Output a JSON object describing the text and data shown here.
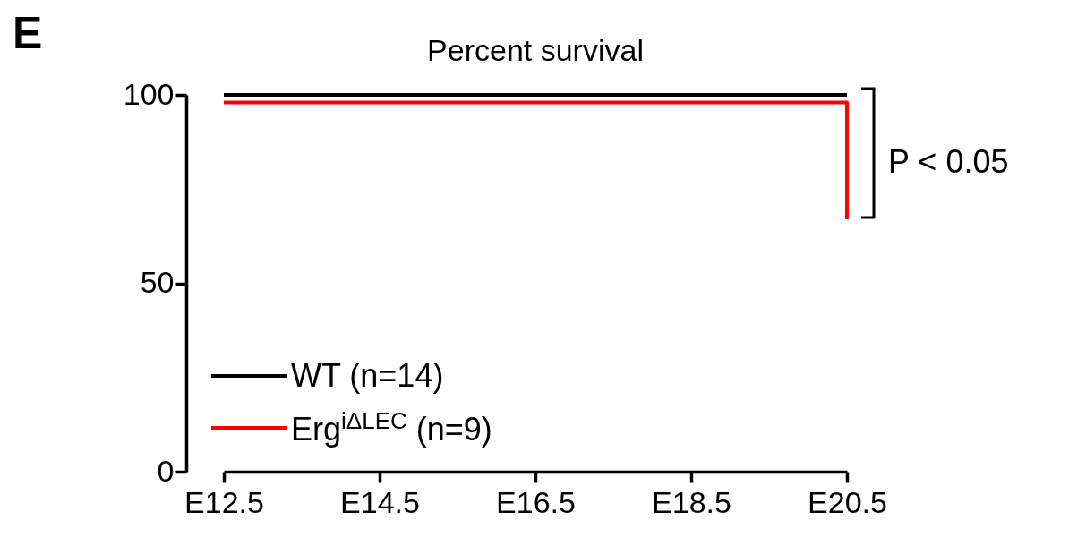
{
  "chart_data": {
    "type": "step",
    "title": "Percent survival",
    "categories": [
      "E12.5",
      "E14.5",
      "E16.5",
      "E18.5",
      "E20.5"
    ],
    "ylim": [
      0,
      100
    ],
    "yticks": [
      0,
      50,
      100
    ],
    "series": [
      {
        "name": "WT (n=14)",
        "color": "#000000",
        "values": [
          100,
          100,
          100,
          100,
          100
        ]
      },
      {
        "name": "Erg$^{iΔLEC}$ (n=9)",
        "color": "#ff0000",
        "values": [
          98,
          98,
          98,
          98,
          67
        ]
      }
    ],
    "legend": "bottom left",
    "grid": false,
    "annotations": [
      "E",
      "P < 0.05"
    ]
  }
}
